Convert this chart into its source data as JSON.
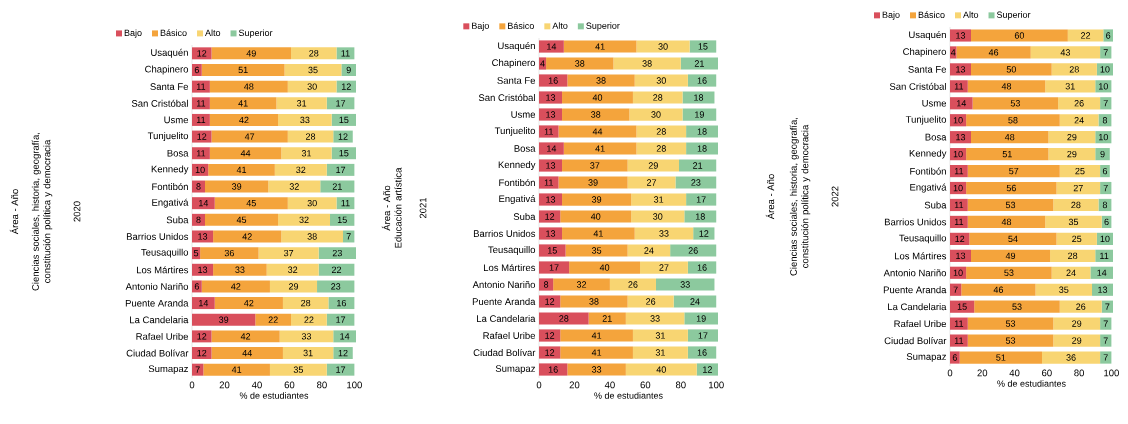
{
  "chart_data": [
    {
      "type": "bar",
      "orientation": "horizontal",
      "stacked": true,
      "data_labels": true,
      "legend": "top",
      "ylabel": "Área - Año",
      "annotations": [
        "Ciencias sociales, historia, geografía, constitución política y democracia",
        "2020"
      ],
      "xlabel": "% de estudiantes",
      "xlim": [
        0,
        101
      ],
      "xticks": [
        0,
        20,
        40,
        60,
        80,
        100
      ],
      "categories": [
        "Usaquén",
        "Chapinero",
        "Santa Fe",
        "San Cristóbal",
        "Usme",
        "Tunjuelito",
        "Bosa",
        "Kennedy",
        "Fontibón",
        "Engativá",
        "Suba",
        "Barrios Unidos",
        "Teusaquillo",
        "Los Mártires",
        "Antonio Nariño",
        "Puente Aranda",
        "La Candelaria",
        "Rafael Uribe",
        "Ciudad Bolívar",
        "Sumapaz"
      ],
      "series": [
        {
          "name": "Bajo",
          "color": "#d94f5c",
          "values": [
            12,
            6,
            11,
            11,
            11,
            12,
            11,
            10,
            8,
            14,
            8,
            13,
            5,
            13,
            6,
            14,
            39,
            12,
            12,
            7
          ]
        },
        {
          "name": "Básico",
          "color": "#f4a43c",
          "values": [
            49,
            51,
            48,
            41,
            42,
            47,
            44,
            41,
            39,
            45,
            45,
            42,
            36,
            33,
            42,
            42,
            22,
            42,
            44,
            41
          ]
        },
        {
          "name": "Alto",
          "color": "#f8d572",
          "values": [
            28,
            35,
            30,
            31,
            33,
            28,
            31,
            32,
            32,
            30,
            32,
            38,
            37,
            32,
            29,
            28,
            22,
            33,
            31,
            35
          ]
        },
        {
          "name": "Superior",
          "color": "#8cc99e",
          "values": [
            11,
            9,
            12,
            17,
            15,
            12,
            15,
            17,
            21,
            11,
            15,
            7,
            23,
            22,
            23,
            16,
            17,
            14,
            12,
            17
          ]
        }
      ]
    },
    {
      "type": "bar",
      "orientation": "horizontal",
      "stacked": true,
      "data_labels": true,
      "legend": "top",
      "ylabel": "Área - Año",
      "annotations": [
        "Educación artística",
        "2021"
      ],
      "xlabel": "% de estudiantes",
      "xlim": [
        0,
        101
      ],
      "xticks": [
        0,
        20,
        40,
        60,
        80,
        100
      ],
      "categories": [
        "Usaquén",
        "Chapinero",
        "Santa Fe",
        "San Cristóbal",
        "Usme",
        "Tunjuelito",
        "Bosa",
        "Kennedy",
        "Fontibón",
        "Engativá",
        "Suba",
        "Barrios Unidos",
        "Teusaquillo",
        "Los Mártires",
        "Antonio Nariño",
        "Puente Aranda",
        "La Candelaria",
        "Rafael Uribe",
        "Ciudad Bolívar",
        "Sumapaz"
      ],
      "series": [
        {
          "name": "Bajo",
          "color": "#d94f5c",
          "values": [
            14,
            4,
            16,
            13,
            13,
            11,
            14,
            13,
            11,
            13,
            12,
            13,
            15,
            17,
            8,
            12,
            28,
            12,
            12,
            16
          ]
        },
        {
          "name": "Básico",
          "color": "#f4a43c",
          "values": [
            41,
            38,
            38,
            40,
            38,
            44,
            41,
            37,
            39,
            39,
            40,
            41,
            35,
            40,
            32,
            38,
            21,
            41,
            41,
            33
          ]
        },
        {
          "name": "Alto",
          "color": "#f8d572",
          "values": [
            30,
            38,
            30,
            28,
            30,
            28,
            28,
            29,
            27,
            31,
            30,
            33,
            24,
            27,
            26,
            26,
            33,
            31,
            31,
            40
          ]
        },
        {
          "name": "Superior",
          "color": "#8cc99e",
          "values": [
            15,
            21,
            16,
            18,
            19,
            18,
            18,
            21,
            23,
            17,
            18,
            12,
            26,
            16,
            33,
            24,
            19,
            17,
            16,
            12
          ]
        }
      ]
    },
    {
      "type": "bar",
      "orientation": "horizontal",
      "stacked": true,
      "data_labels": true,
      "legend": "top",
      "ylabel": "Área - Año",
      "annotations": [
        "Ciencias sociales, historia, geografía, constitución política y democracia",
        "2022"
      ],
      "xlabel": "% de estudiantes",
      "xlim": [
        0,
        101
      ],
      "xticks": [
        0,
        20,
        40,
        60,
        80,
        100
      ],
      "categories": [
        "Usaquén",
        "Chapinero",
        "Santa Fe",
        "San Cristóbal",
        "Usme",
        "Tunjuelito",
        "Bosa",
        "Kennedy",
        "Fontibón",
        "Engativá",
        "Suba",
        "Barrios Unidos",
        "Teusaquillo",
        "Los Mártires",
        "Antonio Nariño",
        "Puente Aranda",
        "La Candelaria",
        "Rafael Uribe",
        "Ciudad Bolívar",
        "Sumapaz"
      ],
      "series": [
        {
          "name": "Bajo",
          "color": "#d94f5c",
          "values": [
            13,
            4,
            13,
            11,
            14,
            10,
            13,
            10,
            11,
            10,
            11,
            11,
            12,
            13,
            10,
            7,
            15,
            11,
            11,
            6
          ]
        },
        {
          "name": "Básico",
          "color": "#f4a43c",
          "values": [
            60,
            46,
            50,
            48,
            53,
            58,
            48,
            51,
            57,
            56,
            53,
            48,
            54,
            49,
            53,
            46,
            53,
            53,
            53,
            51
          ]
        },
        {
          "name": "Alto",
          "color": "#f8d572",
          "values": [
            22,
            43,
            28,
            31,
            26,
            24,
            29,
            29,
            25,
            27,
            28,
            35,
            25,
            28,
            24,
            35,
            26,
            29,
            29,
            36
          ]
        },
        {
          "name": "Superior",
          "color": "#8cc99e",
          "values": [
            6,
            7,
            10,
            10,
            7,
            8,
            10,
            9,
            6,
            7,
            8,
            6,
            10,
            11,
            14,
            13,
            7,
            7,
            7,
            7
          ]
        }
      ]
    }
  ]
}
